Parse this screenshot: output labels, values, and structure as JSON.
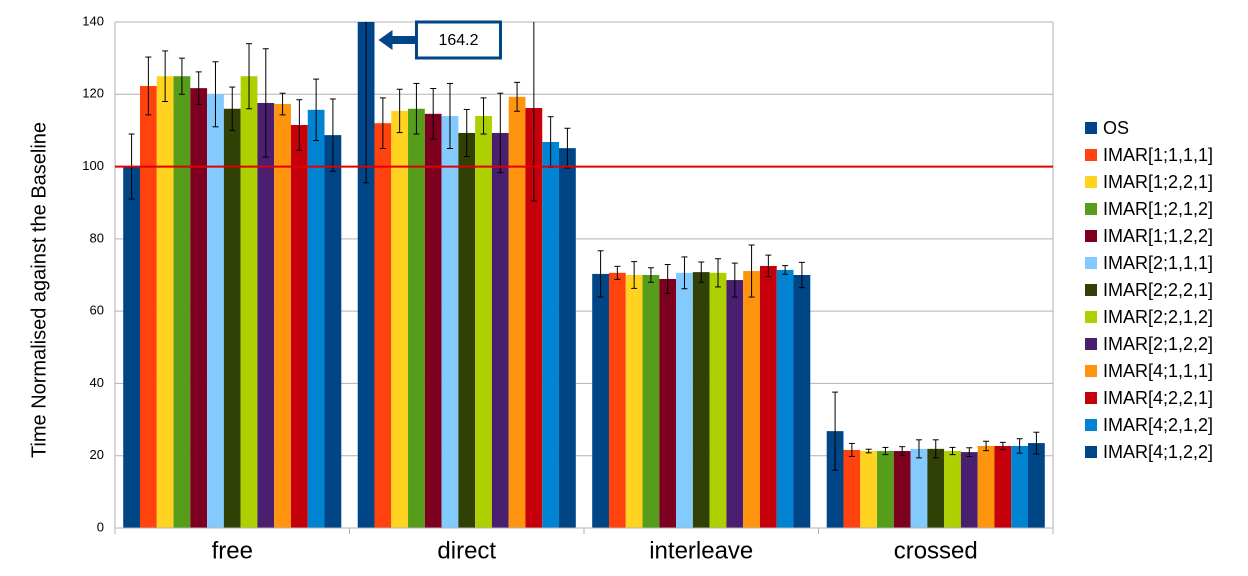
{
  "chart_data": {
    "type": "bar",
    "y_label": "Time Normalised against the Baseline",
    "categories": [
      "free",
      "direct",
      "interleave",
      "crossed"
    ],
    "ylim": [
      0,
      140
    ],
    "yticks": [
      0,
      20,
      40,
      60,
      80,
      100,
      120,
      140
    ],
    "grid": true,
    "reference_line": {
      "value": 100,
      "color": "#e00000"
    },
    "legend": "right",
    "series": [
      {
        "name": "OS",
        "color": "#004586",
        "values": [
          100,
          164.2,
          70.3,
          26.8
        ],
        "errors": [
          9,
          68.7,
          6.4,
          10.8
        ],
        "value_labels": [
          null,
          "164.2",
          null,
          null
        ]
      },
      {
        "name": "IMAR[1;1,1,1]",
        "color": "#ff420e",
        "values": [
          122.3,
          112,
          70.6,
          21.6
        ],
        "errors": [
          8,
          7,
          1.8,
          1.8
        ]
      },
      {
        "name": "IMAR[1;2,2,1]",
        "color": "#ffd320",
        "values": [
          125,
          115.4,
          70,
          21.3
        ],
        "errors": [
          7,
          6,
          3.7,
          0.5
        ]
      },
      {
        "name": "IMAR[1;2,1,2]",
        "color": "#579d1c",
        "values": [
          125,
          116,
          70,
          21.3
        ],
        "errors": [
          5,
          7,
          2,
          1
        ]
      },
      {
        "name": "IMAR[1;1,2,2]",
        "color": "#7e0021",
        "values": [
          121.7,
          114.6,
          68.9,
          21.3
        ],
        "errors": [
          4.5,
          7,
          4,
          1.2
        ]
      },
      {
        "name": "IMAR[2;1,1,1]",
        "color": "#83caff",
        "values": [
          120,
          114,
          70.6,
          21.9
        ],
        "errors": [
          9,
          9,
          4.4,
          2.5
        ]
      },
      {
        "name": "IMAR[2;2,2,1]",
        "color": "#314004",
        "values": [
          116,
          109.3,
          70.8,
          21.9
        ],
        "errors": [
          6,
          6.5,
          2.8,
          2.5
        ]
      },
      {
        "name": "IMAR[2;2,1,2]",
        "color": "#aecf00",
        "values": [
          125,
          114,
          70.6,
          21.3
        ],
        "errors": [
          9,
          5,
          3.9,
          1
        ]
      },
      {
        "name": "IMAR[2;1,2,2]",
        "color": "#4b1f6f",
        "values": [
          117.6,
          109.3,
          68.6,
          21
        ],
        "errors": [
          15,
          11,
          4.7,
          1.2
        ]
      },
      {
        "name": "IMAR[4;1,1,1]",
        "color": "#ff950e",
        "values": [
          117.3,
          119.3,
          71.1,
          22.7
        ],
        "errors": [
          3,
          4,
          7.2,
          1.3
        ]
      },
      {
        "name": "IMAR[4;2,2,1]",
        "color": "#c5000b",
        "values": [
          111.5,
          116.2,
          72.5,
          22.7
        ],
        "errors": [
          7,
          25.7,
          3,
          1
        ]
      },
      {
        "name": "IMAR[4;2,1,2]",
        "color": "#0084d1",
        "values": [
          115.7,
          106.8,
          71.4,
          22.7
        ],
        "errors": [
          8.5,
          7,
          1.2,
          2
        ]
      },
      {
        "name": "IMAR[4;1,2,2]",
        "color": "#004586",
        "values": [
          108.7,
          105.1,
          70,
          23.5
        ],
        "errors": [
          10,
          5.5,
          3.5,
          3
        ]
      }
    ]
  }
}
